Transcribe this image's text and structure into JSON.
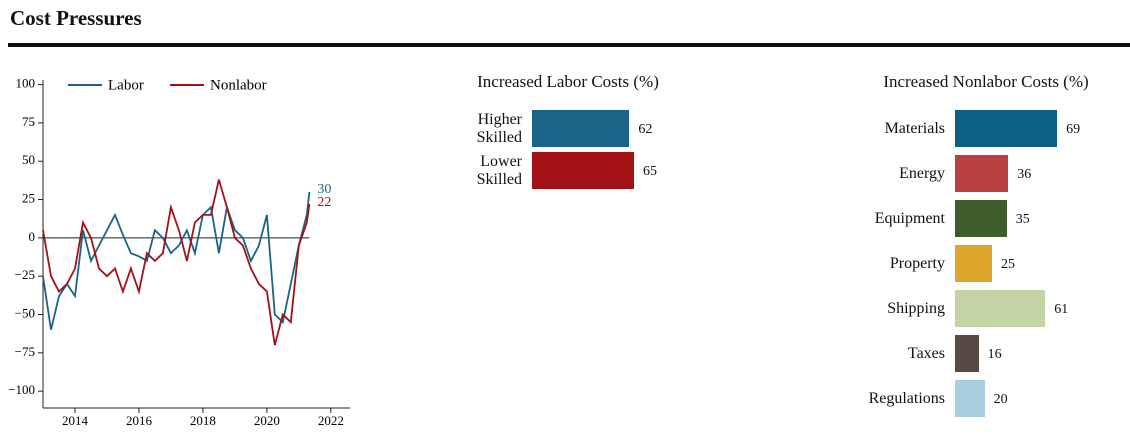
{
  "header": {
    "title": "Cost Pressures"
  },
  "chart_data": [
    {
      "type": "line",
      "x": [
        2013.0,
        2013.25,
        2013.5,
        2013.75,
        2014.0,
        2014.25,
        2014.5,
        2014.75,
        2015.0,
        2015.25,
        2015.5,
        2015.75,
        2016.0,
        2016.25,
        2016.5,
        2016.75,
        2017.0,
        2017.25,
        2017.5,
        2017.75,
        2018.0,
        2018.25,
        2018.5,
        2018.75,
        2019.0,
        2019.25,
        2019.5,
        2019.75,
        2020.0,
        2020.25,
        2020.5,
        2020.75,
        2021.0,
        2021.25,
        2021.33
      ],
      "series": [
        {
          "name": "Labor",
          "color": "#1b6388",
          "values": [
            -25,
            -60,
            -38,
            -30,
            -38,
            5,
            -15,
            -5,
            5,
            15,
            2,
            -10,
            -12,
            -15,
            5,
            0,
            -10,
            -5,
            5,
            -10,
            15,
            20,
            -10,
            20,
            5,
            0,
            -15,
            -5,
            15,
            -50,
            -55,
            -30,
            -5,
            15,
            30
          ]
        },
        {
          "name": "Nonlabor",
          "color": "#a11116",
          "values": [
            5,
            -25,
            -35,
            -30,
            -20,
            10,
            0,
            -20,
            -25,
            -20,
            -35,
            -20,
            -35,
            -10,
            -15,
            -10,
            20,
            5,
            -15,
            10,
            15,
            15,
            38,
            20,
            0,
            -5,
            -20,
            -30,
            -35,
            -70,
            -50,
            -55,
            -5,
            10,
            22
          ]
        }
      ],
      "xlim": [
        2013,
        2022.6
      ],
      "xticks": [
        2014,
        2016,
        2018,
        2020,
        2022
      ],
      "ylim": [
        -111,
        103
      ],
      "yticks": [
        {
          "value": -100,
          "label": "−100"
        },
        {
          "value": -75,
          "label": "−75"
        },
        {
          "value": -50,
          "label": "−50"
        },
        {
          "value": -25,
          "label": "−25"
        },
        0,
        25,
        50,
        75,
        100
      ],
      "grid": false
    },
    {
      "type": "barh",
      "title": "Increased Labor Costs (%)",
      "categories": [
        "Higher Skilled",
        "Lower Skilled"
      ],
      "values": [
        62,
        65
      ],
      "colors": [
        "#1b6388",
        "#a11116"
      ]
    },
    {
      "type": "barh",
      "title": "Increased Nonlabor Costs (%)",
      "categories": [
        "Materials",
        "Energy",
        "Equipment",
        "Property",
        "Shipping",
        "Taxes",
        "Regulations"
      ],
      "values": [
        69,
        36,
        35,
        25,
        61,
        16,
        20
      ],
      "colors": [
        "#0e5f86",
        "#b84040",
        "#3f5d2a",
        "#dba62a",
        "#c4d3a4",
        "#574a42",
        "#a8cfe0"
      ]
    }
  ]
}
